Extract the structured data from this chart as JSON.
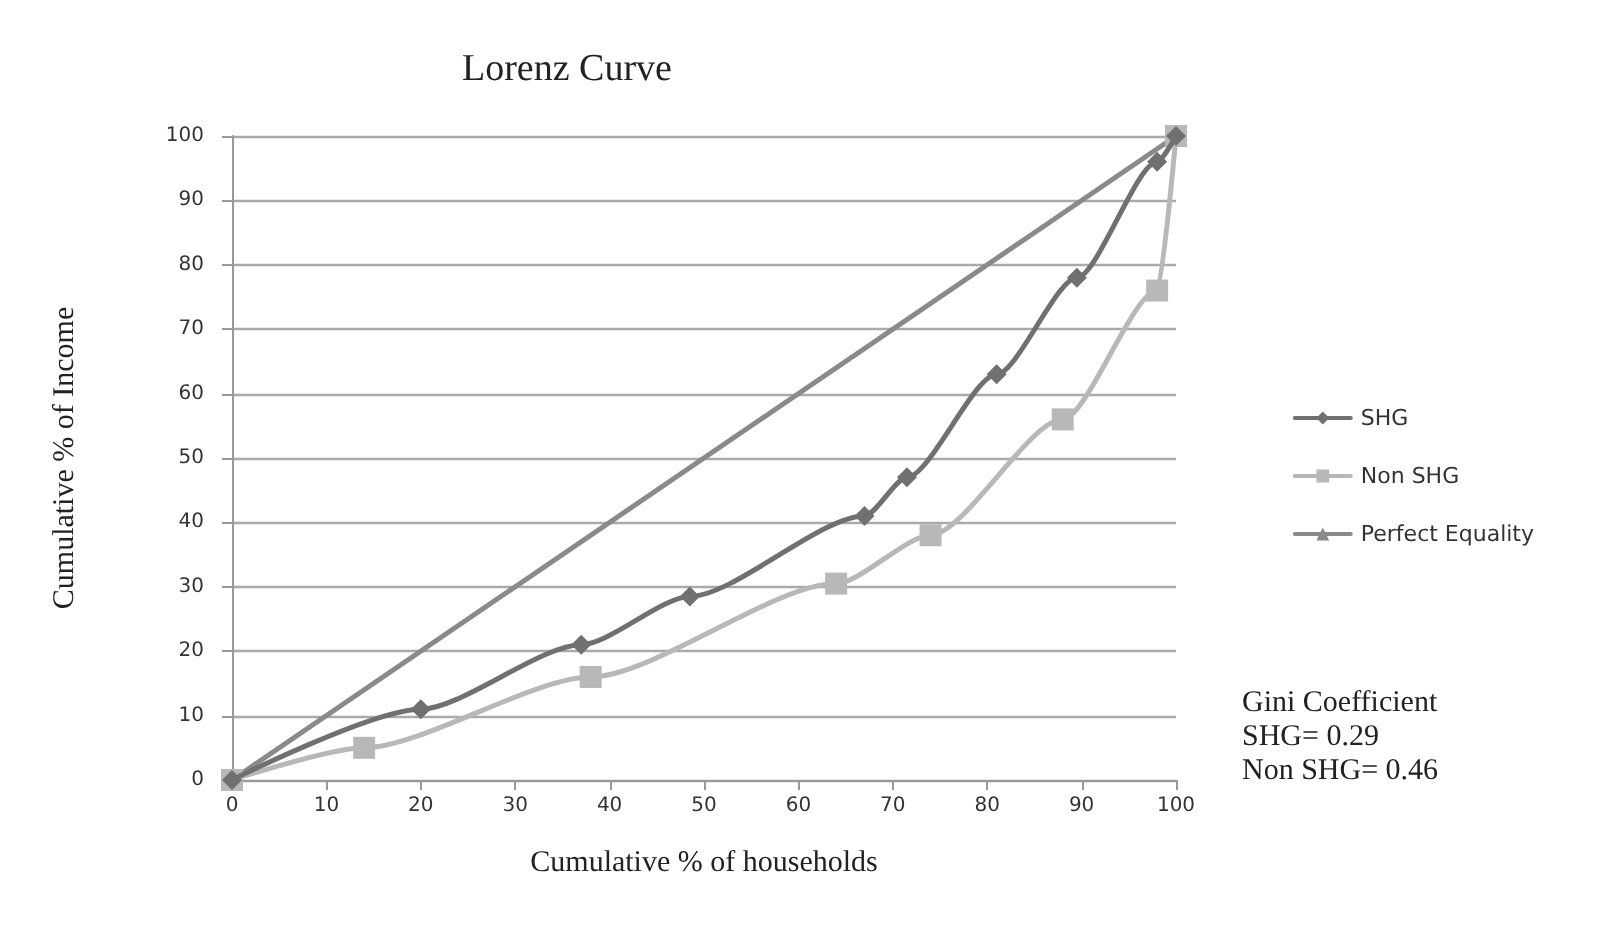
{
  "chart_data": {
    "type": "line",
    "title": "Lorenz Curve",
    "xlabel": "Cumulative % of households",
    "ylabel": "Cumulative % of Income",
    "series": [
      {
        "name": "SHG",
        "color": "#707070",
        "marker": "diamond",
        "x": [
          0,
          20,
          37,
          48.5,
          67,
          71.5,
          81,
          89.5,
          98,
          100
        ],
        "values": [
          0,
          11,
          21,
          28.5,
          41,
          47,
          63,
          78,
          96,
          100
        ]
      },
      {
        "name": "Non SHG",
        "color": "#b8b8b8",
        "marker": "square",
        "x": [
          0,
          14,
          38,
          64,
          74,
          88,
          98,
          100
        ],
        "values": [
          0,
          5,
          16,
          30.5,
          38,
          56,
          76,
          100
        ]
      },
      {
        "name": "Perfect Equality",
        "color": "#8a8a8a",
        "marker": "triangle",
        "x": [
          0,
          100
        ],
        "values": [
          0,
          100
        ]
      }
    ],
    "xlim": [
      0,
      100
    ],
    "xticks": [
      0,
      10,
      20,
      30,
      40,
      50,
      60,
      70,
      80,
      90,
      100
    ],
    "ylim": [
      0,
      100
    ],
    "yticks": [
      0,
      10,
      20,
      30,
      40,
      50,
      60,
      70,
      80,
      90,
      100
    ],
    "grid": "y",
    "legend": "right",
    "annotations": [
      "Gini Coefficient",
      "SHG= 0.29",
      "Non SHG= 0.46"
    ]
  }
}
